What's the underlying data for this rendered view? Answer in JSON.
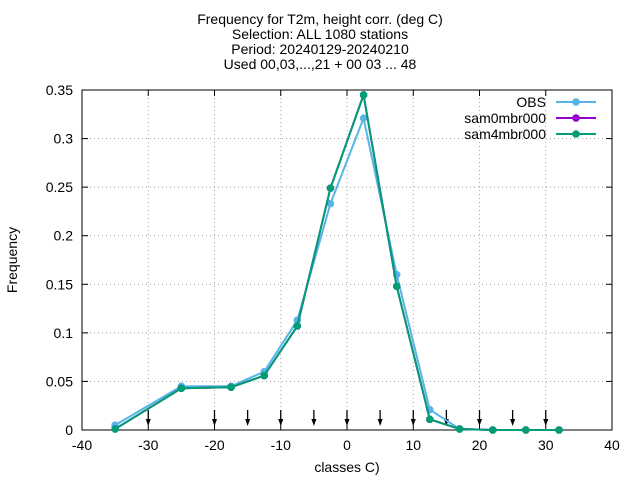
{
  "chart_data": {
    "type": "line",
    "title_lines": [
      "Frequency  for T2m, height corr. (deg C)",
      "Selection: ALL   1080 stations",
      "Period: 20240129-20240210",
      "Used 00,03,...,21 + 00 03 ... 48"
    ],
    "xlabel": "classes C)",
    "ylabel": "Frequency",
    "xlim": [
      -40,
      40
    ],
    "ylim": [
      0,
      0.35
    ],
    "xticks": [
      -40,
      -30,
      -20,
      -10,
      0,
      10,
      20,
      30,
      40
    ],
    "xtick_labels": [
      "-40",
      "-30",
      "-20",
      "-10",
      "0",
      "10",
      "20",
      "30",
      "40"
    ],
    "yticks": [
      0,
      0.05,
      0.1,
      0.15,
      0.2,
      0.25,
      0.3,
      0.35
    ],
    "ytick_labels": [
      "0",
      "0.05",
      "0.1",
      "0.15",
      "0.2",
      "0.25",
      "0.3",
      "0.35"
    ],
    "grid": true,
    "legend_position": "top-right",
    "arrow_markers_x": [
      -30,
      -20,
      -15,
      -10,
      -5,
      0,
      5,
      10,
      15,
      20,
      25,
      30
    ],
    "series": [
      {
        "name": "OBS",
        "color": "#56b4e9",
        "x": [
          -35,
          -25,
          -17.5,
          -12.5,
          -7.5,
          -2.5,
          2.5,
          7.5,
          12.5,
          17,
          22,
          27,
          32
        ],
        "y": [
          0.005,
          0.045,
          0.045,
          0.06,
          0.113,
          0.233,
          0.321,
          0.16,
          0.021,
          0.001,
          0.0,
          0.0,
          0.0
        ]
      },
      {
        "name": "sam0mbr000",
        "color": "#9400d3",
        "x": [
          -35,
          -25,
          -17.5,
          -12.5,
          -7.5,
          -2.5,
          2.5,
          7.5,
          12.5,
          17,
          22,
          27,
          32
        ],
        "y": [
          0.001,
          0.043,
          0.044,
          0.056,
          0.107,
          0.249,
          0.345,
          0.148,
          0.011,
          0.001,
          0.0,
          0.0,
          0.0
        ]
      },
      {
        "name": "sam4mbr000",
        "color": "#009e73",
        "x": [
          -35,
          -25,
          -17.5,
          -12.5,
          -7.5,
          -2.5,
          2.5,
          7.5,
          12.5,
          17,
          22,
          27,
          32
        ],
        "y": [
          0.001,
          0.043,
          0.044,
          0.056,
          0.107,
          0.249,
          0.345,
          0.148,
          0.011,
          0.001,
          0.0,
          0.0,
          0.0
        ]
      }
    ]
  }
}
